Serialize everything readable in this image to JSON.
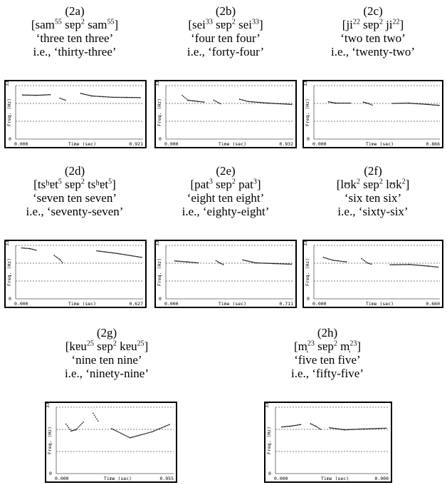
{
  "panels": [
    {
      "id": "(2a)",
      "phon": [
        [
          "[sam",
          ""
        ],
        [
          "55",
          " sɐp"
        ],
        [
          "2",
          " sam"
        ],
        [
          "55",
          "]"
        ]
      ],
      "gloss": "‘three ten three’",
      "meaning": "i.e., ‘thirty-three’"
    },
    {
      "id": "(2b)",
      "phon": [
        [
          "[sei",
          ""
        ],
        [
          "33",
          " sɐp"
        ],
        [
          "2",
          " sei"
        ],
        [
          "33",
          "]"
        ]
      ],
      "gloss": "‘four ten four’",
      "meaning": "i.e., ‘forty-four’"
    },
    {
      "id": "(2c)",
      "phon": [
        [
          "[ji",
          ""
        ],
        [
          "22",
          " sɐp"
        ],
        [
          "2",
          " ji"
        ],
        [
          "22",
          "]"
        ]
      ],
      "gloss": "‘two ten two’",
      "meaning": "i.e., ‘twenty-two’"
    },
    {
      "id": "(2d)",
      "phon": [
        [
          "[tsʰɐt",
          ""
        ],
        [
          "5",
          " sɐp"
        ],
        [
          "2",
          " tsʰɐt"
        ],
        [
          "5",
          "]"
        ]
      ],
      "gloss": "‘seven ten seven’",
      "meaning": "i.e., ‘seventy-seven’"
    },
    {
      "id": "(2e)",
      "phon": [
        [
          "[pat",
          ""
        ],
        [
          "3",
          " sɐp"
        ],
        [
          "2",
          " pat"
        ],
        [
          "3",
          "]"
        ]
      ],
      "gloss": "‘eight ten eight’",
      "meaning": "i.e., ‘eighty-eight’"
    },
    {
      "id": "(2f)",
      "phon": [
        [
          "[lʊk",
          ""
        ],
        [
          "2",
          " sɐp"
        ],
        [
          "2",
          " lʊk"
        ],
        [
          "2",
          "]"
        ]
      ],
      "gloss": "‘six ten six’",
      "meaning": "i.e., ‘sixty-six’"
    },
    {
      "id": "(2g)",
      "phon": [
        [
          "[kɐu",
          ""
        ],
        [
          "25",
          " sɐp"
        ],
        [
          "2",
          " kɐu"
        ],
        [
          "25",
          "]"
        ]
      ],
      "gloss": "‘nine ten nine’",
      "meaning": "i.e., ‘ninety-nine’"
    },
    {
      "id": "(2h)",
      "phon": [
        [
          "[m̩",
          ""
        ],
        [
          "23",
          " sɐp"
        ],
        [
          "2",
          " m̩"
        ],
        [
          "23",
          "]"
        ]
      ],
      "gloss": "‘five ten five’",
      "meaning": "i.e., ‘fifty-five’"
    }
  ],
  "chart_data": [
    {
      "type": "scatter",
      "panel": "(2a)",
      "ylabel": "Freq. (Hz)",
      "xlabel": "Time (sec)",
      "y_top_tick": "330",
      "y_bottom_tick": "0",
      "x_start_tick": "0.000",
      "x_end_tick": "0.921",
      "ylim": [
        0,
        330
      ],
      "xlim": [
        0,
        0.921
      ],
      "segments": [
        [
          [
            0.05,
            272
          ],
          [
            0.15,
            270
          ],
          [
            0.25,
            274
          ]
        ],
        [
          [
            0.32,
            252
          ],
          [
            0.36,
            240
          ]
        ],
        [
          [
            0.47,
            282
          ],
          [
            0.55,
            266
          ],
          [
            0.7,
            258
          ],
          [
            0.9,
            256
          ]
        ]
      ]
    },
    {
      "type": "scatter",
      "panel": "(2b)",
      "ylabel": "Freq. (Hz)",
      "xlabel": "Time (sec)",
      "y_top_tick": "330",
      "y_bottom_tick": "0",
      "x_start_tick": "0.000",
      "x_end_tick": "0.932",
      "ylim": [
        0,
        330
      ],
      "xlim": [
        0,
        0.932
      ],
      "segments": [
        [
          [
            0.12,
            270
          ],
          [
            0.16,
            240
          ],
          [
            0.24,
            232
          ],
          [
            0.28,
            228
          ]
        ],
        [
          [
            0.35,
            240
          ],
          [
            0.4,
            218
          ]
        ],
        [
          [
            0.54,
            246
          ],
          [
            0.6,
            232
          ],
          [
            0.75,
            222
          ],
          [
            0.92,
            214
          ]
        ]
      ]
    },
    {
      "type": "scatter",
      "panel": "(2c)",
      "ylabel": "Freq. (Hz)",
      "xlabel": "Time (sec)",
      "y_top_tick": "330",
      "y_bottom_tick": "0",
      "x_start_tick": "0.000",
      "x_end_tick": "0.866",
      "ylim": [
        0,
        330
      ],
      "xlim": [
        0,
        0.866
      ],
      "segments": [
        [
          [
            0.1,
            230
          ],
          [
            0.15,
            222
          ],
          [
            0.25,
            222
          ]
        ],
        [
          [
            0.34,
            228
          ],
          [
            0.38,
            218
          ],
          [
            0.4,
            210
          ]
        ],
        [
          [
            0.54,
            220
          ],
          [
            0.65,
            222
          ],
          [
            0.78,
            214
          ],
          [
            0.86,
            208
          ]
        ]
      ]
    },
    {
      "type": "scatter",
      "panel": "(2d)",
      "ylabel": "Freq. (Hz)",
      "xlabel": "Time (sec)",
      "y_top_tick": "330",
      "y_bottom_tick": "0",
      "x_start_tick": "0.000",
      "x_end_tick": "0.627",
      "ylim": [
        0,
        330
      ],
      "xlim": [
        0,
        0.627
      ],
      "segments": [
        [
          [
            0.03,
            314
          ],
          [
            0.07,
            310
          ],
          [
            0.1,
            300
          ]
        ],
        [
          [
            0.19,
            268
          ],
          [
            0.22,
            240
          ],
          [
            0.23,
            222
          ]
        ],
        [
          [
            0.4,
            296
          ],
          [
            0.5,
            280
          ],
          [
            0.62,
            256
          ]
        ]
      ]
    },
    {
      "type": "scatter",
      "panel": "(2e)",
      "ylabel": "Freq. (Hz)",
      "xlabel": "Time (sec)",
      "y_top_tick": "330",
      "y_bottom_tick": "0",
      "x_start_tick": "0.000",
      "x_end_tick": "0.711",
      "ylim": [
        0,
        330
      ],
      "xlim": [
        0,
        0.711
      ],
      "segments": [
        [
          [
            0.05,
            234
          ],
          [
            0.12,
            228
          ],
          [
            0.18,
            222
          ]
        ],
        [
          [
            0.28,
            236
          ],
          [
            0.3,
            222
          ],
          [
            0.32,
            212
          ]
        ],
        [
          [
            0.43,
            240
          ],
          [
            0.5,
            222
          ],
          [
            0.6,
            218
          ],
          [
            0.7,
            214
          ]
        ]
      ]
    },
    {
      "type": "scatter",
      "panel": "(2f)",
      "ylabel": "Freq. (Hz)",
      "xlabel": "Time (sec)",
      "y_top_tick": "330",
      "y_bottom_tick": "0",
      "x_start_tick": "0.000",
      "x_end_tick": "0.660",
      "ylim": [
        0,
        330
      ],
      "xlim": [
        0,
        0.66
      ],
      "segments": [
        [
          [
            0.05,
            256
          ],
          [
            0.1,
            238
          ],
          [
            0.17,
            228
          ]
        ],
        [
          [
            0.25,
            248
          ],
          [
            0.28,
            222
          ],
          [
            0.3,
            214
          ]
        ],
        [
          [
            0.4,
            210
          ],
          [
            0.5,
            212
          ],
          [
            0.6,
            202
          ],
          [
            0.65,
            196
          ]
        ]
      ]
    },
    {
      "type": "scatter",
      "panel": "(2g)",
      "ylabel": "Freq. (Hz)",
      "xlabel": "Time (sec)",
      "y_top_tick": "330",
      "y_bottom_tick": "0",
      "x_start_tick": "0.000",
      "x_end_tick": "0.955",
      "ylim": [
        0,
        330
      ],
      "xlim": [
        0,
        0.955
      ],
      "segments": [
        [
          [
            0.08,
            246
          ],
          [
            0.12,
            212
          ],
          [
            0.16,
            218
          ],
          [
            0.22,
            256
          ]
        ],
        [
          [
            0.3,
            300
          ],
          [
            0.34,
            262
          ]
        ],
        [
          [
            0.45,
            224
          ],
          [
            0.6,
            178
          ],
          [
            0.78,
            208
          ],
          [
            0.92,
            244
          ]
        ]
      ]
    },
    {
      "type": "scatter",
      "panel": "(2h)",
      "ylabel": "Freq. (Hz)",
      "xlabel": "Time (sec)",
      "y_top_tick": "330",
      "y_bottom_tick": "0",
      "x_start_tick": "0.000",
      "x_end_tick": "0.900",
      "ylim": [
        0,
        330
      ],
      "xlim": [
        0,
        0.9
      ],
      "segments": [
        [
          [
            0.05,
            232
          ],
          [
            0.12,
            236
          ],
          [
            0.2,
            244
          ]
        ],
        [
          [
            0.28,
            248
          ],
          [
            0.32,
            236
          ],
          [
            0.36,
            220
          ]
        ],
        [
          [
            0.43,
            228
          ],
          [
            0.55,
            218
          ],
          [
            0.7,
            222
          ],
          [
            0.88,
            226
          ]
        ]
      ]
    }
  ]
}
